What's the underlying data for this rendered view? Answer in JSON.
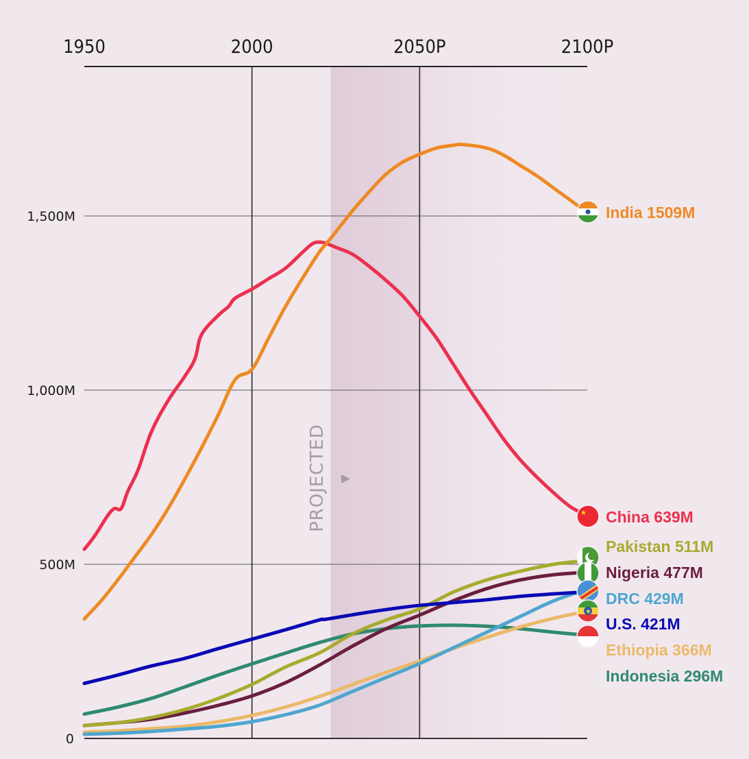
{
  "chart_data": {
    "type": "line",
    "title": "",
    "xlabel": "",
    "ylabel": "",
    "x_ticks": [
      {
        "value": 1950,
        "label": "1950"
      },
      {
        "value": 2000,
        "label": "2000"
      },
      {
        "value": 2050,
        "label": "2050P"
      },
      {
        "value": 2100,
        "label": "2100P"
      }
    ],
    "y_ticks": [
      {
        "value": 0,
        "label": "0"
      },
      {
        "value": 500,
        "label": "500M"
      },
      {
        "value": 1000,
        "label": "1,000M"
      },
      {
        "value": 1500,
        "label": "1,500M"
      }
    ],
    "xlim": [
      1950,
      2100
    ],
    "ylim": [
      0,
      1500
    ],
    "units": "millions",
    "grid": true,
    "projected_region": {
      "start": 2023.5,
      "end": 2100,
      "label": "PROJECTED",
      "arrow": "▶"
    },
    "legend_placement": "right-end-labels",
    "series": [
      {
        "name": "India",
        "label": "India 1509M",
        "color": "#ee8a24",
        "flag": "india-flag",
        "x": [
          1950,
          1955,
          1960,
          1965,
          1970,
          1975,
          1980,
          1985,
          1990,
          1995,
          2000,
          2005,
          2010,
          2015,
          2020,
          2023,
          2030,
          2035,
          2040,
          2045,
          2050,
          2055,
          2060,
          2063,
          2070,
          2075,
          2080,
          2085,
          2090,
          2095,
          2100
        ],
        "y": [
          343,
          395,
          455,
          520,
          585,
          660,
          745,
          835,
          930,
          1030,
          1060,
          1150,
          1240,
          1320,
          1395,
          1430,
          1515,
          1570,
          1620,
          1655,
          1677,
          1695,
          1703,
          1705,
          1695,
          1675,
          1645,
          1615,
          1580,
          1545,
          1509
        ]
      },
      {
        "name": "China",
        "label": "China 639M",
        "color": "#ec3050",
        "flag": "china-flag",
        "x": [
          1950,
          1953,
          1957,
          1959,
          1961,
          1963,
          1966,
          1970,
          1975,
          1980,
          1983,
          1985,
          1990,
          1993,
          1995,
          2000,
          2005,
          2010,
          2015,
          2018,
          2020,
          2022,
          2025,
          2030,
          2035,
          2040,
          2045,
          2050,
          2055,
          2060,
          2065,
          2070,
          2075,
          2080,
          2085,
          2090,
          2095,
          2100
        ],
        "y": [
          543,
          580,
          640,
          660,
          660,
          710,
          770,
          880,
          970,
          1040,
          1090,
          1160,
          1215,
          1240,
          1264,
          1290,
          1320,
          1350,
          1395,
          1420,
          1425,
          1422,
          1410,
          1390,
          1355,
          1315,
          1270,
          1212,
          1150,
          1075,
          1000,
          930,
          860,
          800,
          750,
          705,
          665,
          639
        ]
      },
      {
        "name": "Pakistan",
        "label": "Pakistan 511M",
        "color": "#a6ab2e",
        "flag": "pakistan-flag",
        "x": [
          1950,
          1960,
          1970,
          1980,
          1990,
          2000,
          2010,
          2020,
          2030,
          2040,
          2050,
          2060,
          2070,
          2080,
          2090,
          2100
        ],
        "y": [
          37,
          45,
          60,
          83,
          115,
          155,
          205,
          245,
          300,
          340,
          372,
          420,
          455,
          480,
          500,
          511
        ]
      },
      {
        "name": "Nigeria",
        "label": "Nigeria 477M",
        "color": "#6a1e3e",
        "flag": "nigeria-flag",
        "x": [
          1950,
          1960,
          1970,
          1980,
          1990,
          2000,
          2010,
          2020,
          2030,
          2040,
          2050,
          2060,
          2070,
          2080,
          2090,
          2100
        ],
        "y": [
          37,
          45,
          55,
          73,
          95,
          122,
          160,
          210,
          265,
          315,
          354,
          395,
          430,
          455,
          470,
          477
        ]
      },
      {
        "name": "DRC",
        "label": "DRC 429M",
        "color": "#4ea6cf",
        "flag": "drc-flag",
        "x": [
          1950,
          1960,
          1970,
          1980,
          1990,
          2000,
          2010,
          2020,
          2030,
          2040,
          2050,
          2060,
          2070,
          2080,
          2090,
          2100
        ],
        "y": [
          12,
          15,
          20,
          27,
          35,
          48,
          68,
          95,
          135,
          175,
          215,
          260,
          305,
          350,
          395,
          429
        ]
      },
      {
        "name": "U.S.",
        "label": "U.S. 421M",
        "color": "#0a0ab4",
        "flag": "us-flag",
        "x": [
          1950,
          1960,
          1970,
          1980,
          1990,
          2000,
          2010,
          2020,
          2022,
          2030,
          2040,
          2050,
          2060,
          2070,
          2080,
          2090,
          2100
        ],
        "y": [
          158,
          182,
          208,
          230,
          258,
          285,
          312,
          340,
          342,
          355,
          370,
          382,
          390,
          398,
          408,
          415,
          421
        ]
      },
      {
        "name": "Ethiopia",
        "label": "Ethiopia 366M",
        "color": "#ebb96a",
        "flag": "ethiopia-flag",
        "x": [
          1950,
          1960,
          1970,
          1980,
          1990,
          2000,
          2010,
          2020,
          2030,
          2040,
          2050,
          2060,
          2070,
          2080,
          2090,
          2100
        ],
        "y": [
          18,
          22,
          28,
          35,
          48,
          66,
          90,
          120,
          155,
          190,
          222,
          258,
          290,
          320,
          345,
          366
        ]
      },
      {
        "name": "Indonesia",
        "label": "Indonesia 296M",
        "color": "#2f8a6f",
        "flag": "indonesia-flag",
        "x": [
          1950,
          1960,
          1970,
          1980,
          1990,
          2000,
          2010,
          2020,
          2030,
          2040,
          2050,
          2060,
          2070,
          2080,
          2090,
          2100
        ],
        "y": [
          70,
          90,
          115,
          148,
          182,
          214,
          245,
          275,
          300,
          315,
          323,
          325,
          322,
          315,
          305,
          296
        ]
      }
    ]
  }
}
